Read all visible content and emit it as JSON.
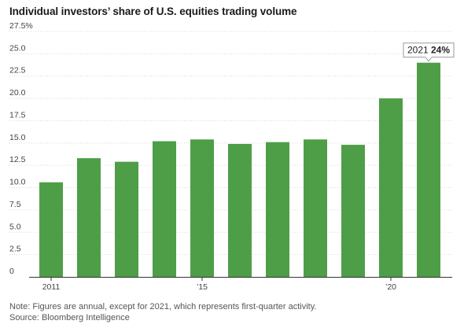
{
  "title": "Individual investors’ share of U.S. equities trading volume",
  "notes": {
    "note": "Note: Figures are annual, except for 2021, which represents first-quarter activity.",
    "source": "Source: Bloomberg Intelligence"
  },
  "colors": {
    "bar": "#4e9e47",
    "grid": "#d9d9d9",
    "axis": "#333333",
    "tick_text": "#444444"
  },
  "chart_data": {
    "type": "bar",
    "categories": [
      "2011",
      "2012",
      "2013",
      "2014",
      "2015",
      "2016",
      "2017",
      "2018",
      "2019",
      "2020",
      "2021"
    ],
    "values": [
      10.6,
      13.3,
      12.9,
      15.2,
      15.4,
      14.9,
      15.1,
      15.4,
      14.8,
      20.0,
      24.0
    ],
    "x_tick_labels": [
      {
        "category": "2011",
        "label": "2011"
      },
      {
        "category": "2015",
        "label": "’15"
      },
      {
        "category": "2020",
        "label": "’20"
      }
    ],
    "y_ticks": [
      0,
      2.5,
      5.0,
      7.5,
      10.0,
      12.5,
      15.0,
      17.5,
      20.0,
      22.5,
      25.0,
      27.5
    ],
    "y_tick_labels": [
      "0",
      "2.5",
      "5.0",
      "7.5",
      "10.0",
      "12.5",
      "15.0",
      "17.5",
      "20.0",
      "22.5",
      "25.0",
      "27.5%"
    ],
    "ylim": [
      0,
      27.5
    ],
    "grid": true,
    "annotation": {
      "category": "2021",
      "label_year": "2021",
      "label_value": "24%"
    }
  }
}
